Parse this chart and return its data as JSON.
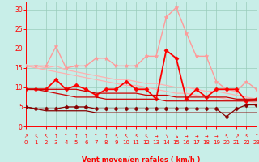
{
  "x": [
    0,
    1,
    2,
    3,
    4,
    5,
    6,
    7,
    8,
    9,
    10,
    11,
    12,
    13,
    14,
    15,
    16,
    17,
    18,
    19,
    20,
    21,
    22,
    23
  ],
  "lines": [
    {
      "color": "#FF9999",
      "linewidth": 1.0,
      "marker": "*",
      "markersize": 3.5,
      "y": [
        15.5,
        15.5,
        15.5,
        20.5,
        15.0,
        15.5,
        15.5,
        17.5,
        17.5,
        15.5,
        15.5,
        15.5,
        18.0,
        18.0,
        28.0,
        30.5,
        24.0,
        18.0,
        18.0,
        11.5,
        9.5,
        9.0,
        11.5,
        9.5
      ]
    },
    {
      "color": "#FFB0B0",
      "linewidth": 0.9,
      "marker": null,
      "markersize": 0,
      "y": [
        15.5,
        15.5,
        15.0,
        15.5,
        14.5,
        14.0,
        13.5,
        13.0,
        12.5,
        12.0,
        12.0,
        11.5,
        11.0,
        11.0,
        10.5,
        10.0,
        10.0,
        9.5,
        9.0,
        9.0,
        8.5,
        8.0,
        7.5,
        7.0
      ]
    },
    {
      "color": "#FFB0B0",
      "linewidth": 0.9,
      "marker": null,
      "markersize": 0,
      "y": [
        15.5,
        15.0,
        14.5,
        14.0,
        13.5,
        13.0,
        12.5,
        12.0,
        11.5,
        11.0,
        10.5,
        10.5,
        10.0,
        9.5,
        9.0,
        8.5,
        8.5,
        8.0,
        7.5,
        7.5,
        7.0,
        6.5,
        6.5,
        6.0
      ]
    },
    {
      "color": "#FF0000",
      "linewidth": 1.3,
      "marker": "D",
      "markersize": 2.5,
      "y": [
        9.5,
        9.5,
        9.5,
        12.0,
        9.5,
        10.5,
        9.5,
        8.0,
        9.5,
        9.5,
        11.5,
        9.5,
        9.5,
        7.0,
        19.5,
        17.5,
        7.0,
        9.5,
        7.5,
        9.5,
        9.5,
        9.5,
        6.5,
        7.0
      ]
    },
    {
      "color": "#CC0000",
      "linewidth": 0.9,
      "marker": null,
      "markersize": 0,
      "y": [
        9.5,
        9.5,
        9.5,
        9.5,
        9.5,
        9.5,
        9.0,
        8.5,
        8.5,
        8.5,
        8.5,
        8.5,
        8.0,
        8.0,
        8.0,
        7.5,
        7.5,
        7.5,
        7.5,
        7.5,
        7.5,
        7.0,
        7.0,
        7.0
      ]
    },
    {
      "color": "#CC0000",
      "linewidth": 0.9,
      "marker": null,
      "markersize": 0,
      "y": [
        9.5,
        9.5,
        9.0,
        8.5,
        8.0,
        7.5,
        7.5,
        7.5,
        7.0,
        7.0,
        7.0,
        7.0,
        7.0,
        7.0,
        6.5,
        6.5,
        6.5,
        6.5,
        6.5,
        6.5,
        6.5,
        6.5,
        6.5,
        6.5
      ]
    },
    {
      "color": "#880000",
      "linewidth": 0.9,
      "marker": "D",
      "markersize": 2.5,
      "y": [
        5.0,
        4.5,
        4.5,
        4.5,
        5.0,
        5.0,
        5.0,
        4.5,
        4.5,
        4.5,
        4.5,
        4.5,
        4.5,
        4.5,
        4.5,
        4.5,
        4.5,
        4.5,
        4.5,
        4.5,
        2.5,
        4.5,
        5.5,
        5.5
      ]
    },
    {
      "color": "#880000",
      "linewidth": 0.9,
      "marker": null,
      "markersize": 0,
      "y": [
        5.0,
        4.5,
        4.0,
        4.0,
        4.0,
        4.0,
        4.0,
        3.5,
        3.5,
        3.5,
        3.5,
        3.5,
        3.5,
        3.5,
        3.5,
        3.5,
        3.5,
        3.5,
        3.5,
        3.5,
        3.5,
        3.5,
        3.5,
        3.5
      ]
    }
  ],
  "arrows": [
    "↗",
    "↖",
    "↖",
    "↑",
    "↑",
    "↑",
    "↑",
    "↑",
    "↑",
    "↖",
    "↖",
    "↖",
    "↖",
    "→",
    "↘",
    "↘",
    "→",
    "→",
    "→",
    "→",
    "↖",
    "↗",
    "↖",
    "↑"
  ],
  "xlim": [
    0,
    23
  ],
  "ylim": [
    0,
    32
  ],
  "yticks": [
    0,
    5,
    10,
    15,
    20,
    25,
    30
  ],
  "xticks": [
    0,
    1,
    2,
    3,
    4,
    5,
    6,
    7,
    8,
    9,
    10,
    11,
    12,
    13,
    14,
    15,
    16,
    17,
    18,
    19,
    20,
    21,
    22,
    23
  ],
  "xlabel": "Vent moyen/en rafales ( km/h )",
  "bgcolor": "#C8EEE8",
  "grid_color": "#99CCBB",
  "text_color": "#FF0000"
}
